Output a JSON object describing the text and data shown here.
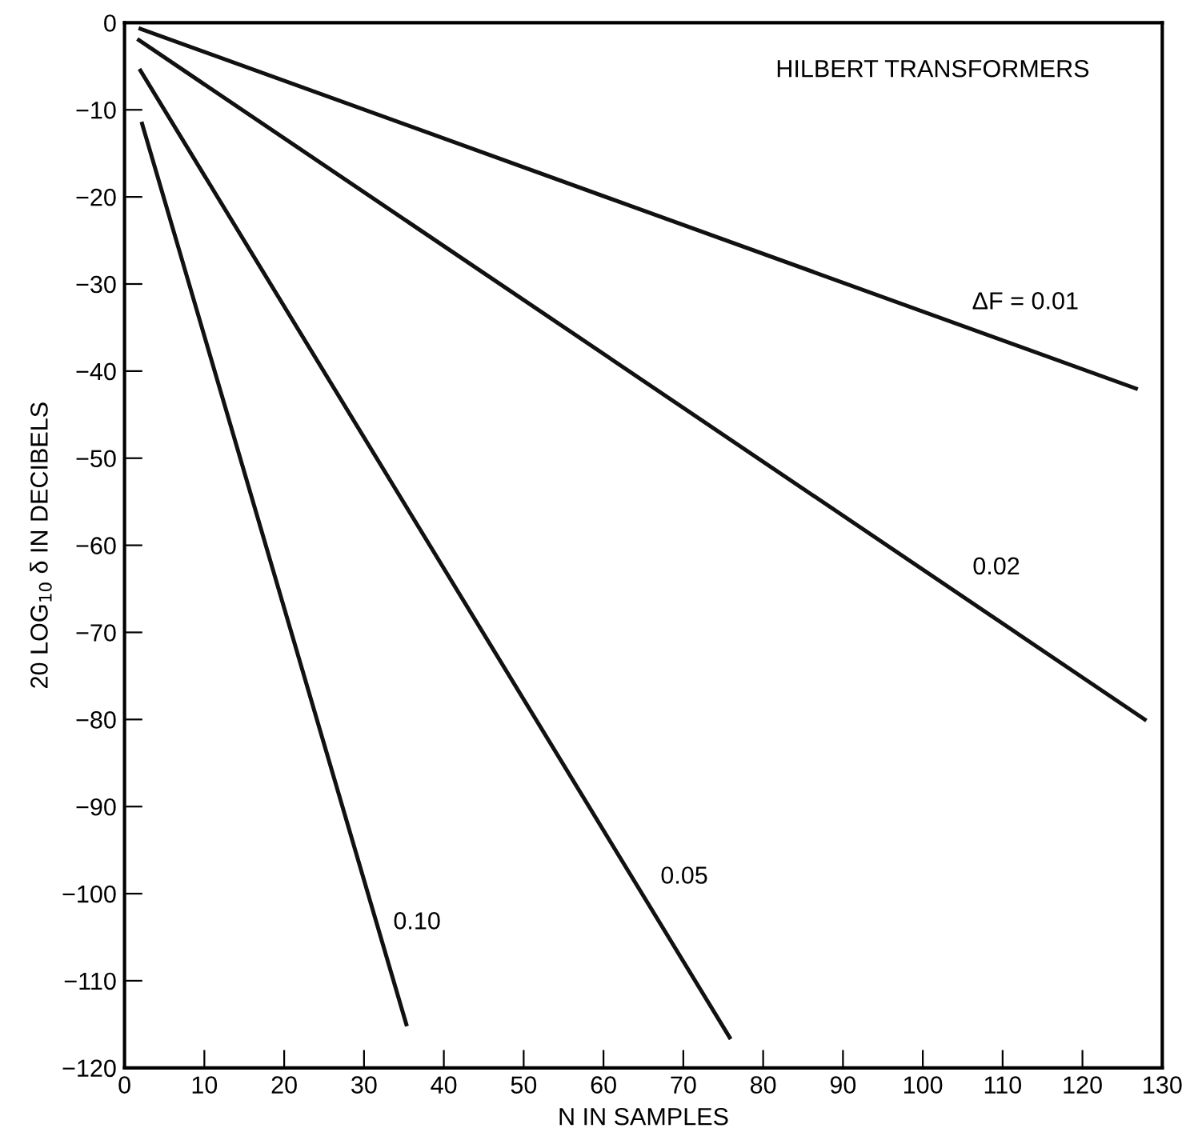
{
  "chart_data": {
    "type": "line",
    "title": "HILBERT TRANSFORMERS",
    "xlabel": "N IN SAMPLES",
    "ylabel": "20 LOG$_{10}$ δ IN DECIBELS",
    "xlim": [
      0,
      130
    ],
    "xticks": [
      0,
      10,
      20,
      30,
      40,
      50,
      60,
      70,
      80,
      90,
      100,
      110,
      120,
      130
    ],
    "ylim": [
      -120,
      0
    ],
    "yticks": [
      0,
      -10,
      -20,
      -30,
      -40,
      -50,
      -60,
      -70,
      -80,
      -90,
      -100,
      -110,
      -120
    ],
    "grid": false,
    "marker": "none",
    "line_style": "solid",
    "series": [
      {
        "name": "ΔF = 0.01",
        "color": "#111111",
        "x": [
          2,
          126.7
        ],
        "values": [
          -0.7,
          -42
        ]
      },
      {
        "name": "0.02",
        "color": "#111111",
        "x": [
          1.8,
          127.8
        ],
        "values": [
          -2,
          -80
        ]
      },
      {
        "name": "0.05",
        "color": "#111111",
        "x": [
          2,
          75.8
        ],
        "values": [
          -5.5,
          -116.5
        ]
      },
      {
        "name": "0.10",
        "color": "#111111",
        "x": [
          2.2,
          35.3
        ],
        "values": [
          -11.6,
          -115
        ]
      }
    ]
  }
}
